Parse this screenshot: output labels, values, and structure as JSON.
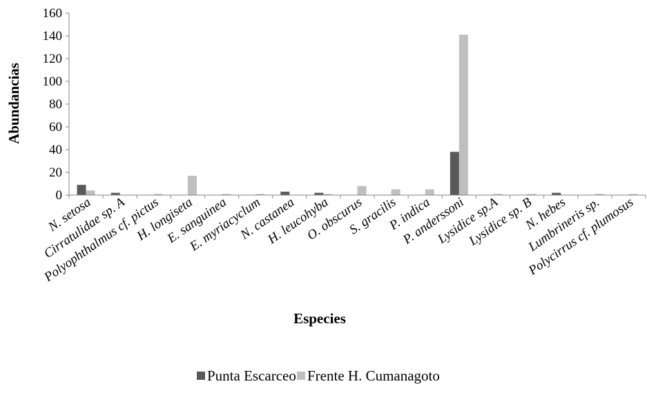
{
  "chart_data": {
    "type": "bar",
    "title": "",
    "xlabel": "Especies",
    "ylabel": "Abundancias",
    "ylim": [
      0,
      160
    ],
    "yticks": [
      0,
      20,
      40,
      60,
      80,
      100,
      120,
      140,
      160
    ],
    "grid": false,
    "legend_position": "bottom",
    "categories": [
      "N. setosa",
      "Cirratulidae sp. A",
      "Polyophthalmus cf. pictus",
      "H. longiseta",
      "E. sanguinea",
      "E. myriacyclum",
      "N. castanea",
      "H. leucohyba",
      "O. obscurus",
      "S. gracilis",
      "P. indica",
      "P. anderssoni",
      "Lysidice sp.A",
      "Lysidice sp. B",
      "N. hebes",
      "Lumbrineris sp.",
      "Polycirrus cf. plumosus"
    ],
    "series": [
      {
        "name": "Punta Escarceo",
        "color": "#595959",
        "values": [
          9,
          2,
          0,
          0,
          0,
          0,
          3,
          2,
          0,
          0,
          0,
          38,
          0,
          0,
          2,
          0,
          0
        ]
      },
      {
        "name": "Frente H. Cumanagoto",
        "color": "#bfbfbf",
        "values": [
          4,
          0,
          1,
          17,
          1,
          1,
          0,
          1,
          8,
          5,
          5,
          141,
          1,
          1,
          0,
          1,
          1
        ]
      }
    ]
  }
}
